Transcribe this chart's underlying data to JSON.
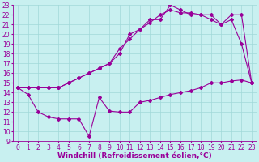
{
  "xlabel": "Windchill (Refroidissement éolien,°C)",
  "bg_color": "#c8f0f0",
  "grid_color": "#a0d8d8",
  "line_color": "#990099",
  "xlim": [
    -0.5,
    23.5
  ],
  "ylim": [
    9,
    23
  ],
  "xticks": [
    0,
    1,
    2,
    3,
    4,
    5,
    6,
    7,
    8,
    9,
    10,
    11,
    12,
    13,
    14,
    15,
    16,
    17,
    18,
    19,
    20,
    21,
    22,
    23
  ],
  "yticks": [
    9,
    10,
    11,
    12,
    13,
    14,
    15,
    16,
    17,
    18,
    19,
    20,
    21,
    22,
    23
  ],
  "line1_x": [
    0,
    1,
    2,
    3,
    4,
    5,
    6,
    7,
    8,
    9,
    10,
    11,
    12,
    13,
    14,
    15,
    16,
    17,
    18,
    19,
    20,
    21,
    22,
    23
  ],
  "line1_y": [
    14.5,
    13.8,
    12.0,
    11.5,
    11.3,
    11.3,
    11.3,
    9.5,
    13.5,
    12.1,
    12.0,
    12.0,
    13.0,
    13.2,
    13.5,
    13.8,
    14.0,
    14.2,
    14.5,
    15.0,
    15.0,
    15.2,
    15.3,
    15.0
  ],
  "line2_x": [
    0,
    1,
    2,
    3,
    4,
    5,
    6,
    7,
    8,
    9,
    10,
    11,
    12,
    13,
    14,
    15,
    16,
    17,
    18,
    19,
    20,
    21,
    22,
    23
  ],
  "line2_y": [
    14.5,
    14.5,
    14.5,
    14.5,
    14.5,
    15.0,
    15.5,
    16.0,
    16.5,
    17.0,
    18.5,
    19.5,
    20.5,
    21.2,
    22.0,
    22.5,
    22.2,
    22.2,
    22.0,
    21.5,
    21.0,
    21.5,
    19.0,
    15.0
  ],
  "line3_x": [
    0,
    1,
    2,
    3,
    4,
    5,
    6,
    7,
    8,
    9,
    10,
    11,
    12,
    13,
    14,
    15,
    16,
    17,
    18,
    19,
    20,
    21,
    22,
    23
  ],
  "line3_y": [
    14.5,
    14.5,
    14.5,
    14.5,
    14.5,
    15.0,
    15.5,
    16.0,
    16.5,
    17.0,
    18.0,
    20.0,
    20.5,
    21.5,
    21.5,
    23.0,
    22.5,
    22.0,
    22.0,
    22.0,
    21.0,
    22.0,
    22.0,
    15.0
  ],
  "tick_fontsize": 5.5,
  "xlabel_fontsize": 6.5,
  "marker": "D",
  "markersize": 2.0,
  "linewidth": 0.8
}
